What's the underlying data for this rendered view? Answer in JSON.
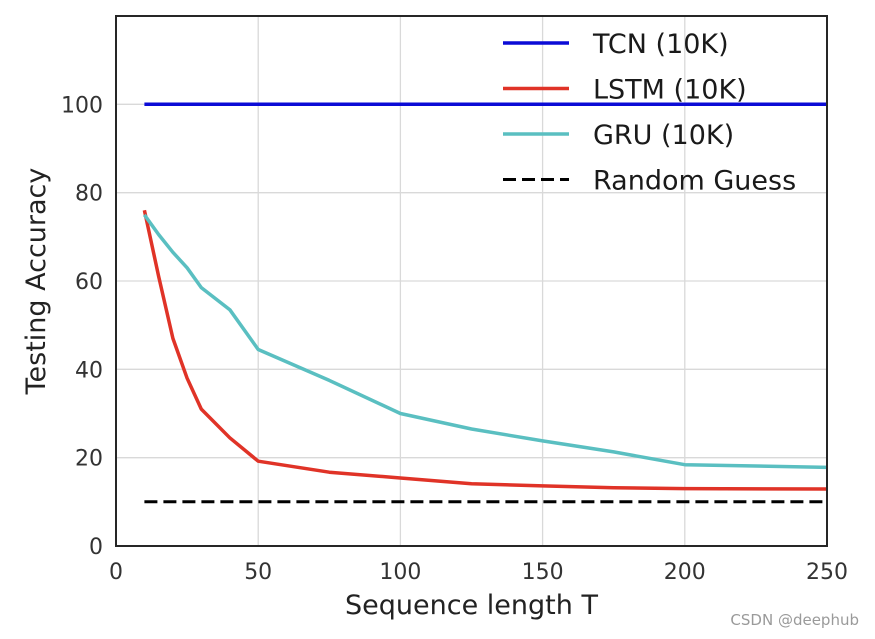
{
  "watermark": "CSDN @deephub",
  "chart_data": {
    "type": "line",
    "title": "",
    "xlabel": "Sequence length T",
    "ylabel": "Testing Accuracy",
    "xlim": [
      0,
      250
    ],
    "ylim": [
      0,
      120
    ],
    "xticks": [
      0,
      50,
      100,
      150,
      200,
      250
    ],
    "yticks": [
      0,
      20,
      40,
      60,
      80,
      100
    ],
    "grid": true,
    "legend_position": "top-right",
    "series": [
      {
        "name": "TCN (10K)",
        "color": "#0b0bd6",
        "dash": "solid",
        "x": [
          10,
          250
        ],
        "y": [
          100,
          100
        ]
      },
      {
        "name": "LSTM (10K)",
        "color": "#e03327",
        "dash": "solid",
        "x": [
          10,
          15,
          20,
          25,
          30,
          40,
          50,
          75,
          100,
          125,
          150,
          175,
          200,
          250
        ],
        "y": [
          76,
          61,
          47,
          38,
          31,
          24.5,
          19.2,
          16.7,
          15.4,
          14.1,
          13.6,
          13.2,
          13.0,
          12.9
        ]
      },
      {
        "name": "GRU (10K)",
        "color": "#5abfc1",
        "dash": "solid",
        "x": [
          10,
          15,
          20,
          25,
          30,
          40,
          50,
          75,
          100,
          125,
          150,
          175,
          200,
          250
        ],
        "y": [
          75,
          70.5,
          66.5,
          63,
          58.5,
          53.5,
          44.5,
          37.5,
          30,
          26.5,
          23.8,
          21.3,
          18.4,
          17.8
        ]
      },
      {
        "name": "Random Guess",
        "color": "#000000",
        "dash": "dashed",
        "x": [
          10,
          250
        ],
        "y": [
          10,
          10
        ]
      }
    ]
  }
}
